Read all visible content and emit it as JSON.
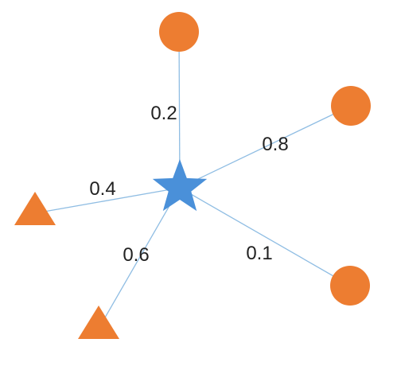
{
  "colors": {
    "center": "#4a90d9",
    "leaf": "#ed7d31",
    "edge": "#8fbde3",
    "label": "#222222"
  },
  "center": {
    "shape": "star"
  },
  "edges": [
    {
      "weight": "0.2",
      "leaf_shape": "circle"
    },
    {
      "weight": "0.8",
      "leaf_shape": "circle"
    },
    {
      "weight": "0.1",
      "leaf_shape": "circle"
    },
    {
      "weight": "0.6",
      "leaf_shape": "triangle"
    },
    {
      "weight": "0.4",
      "leaf_shape": "triangle"
    }
  ]
}
